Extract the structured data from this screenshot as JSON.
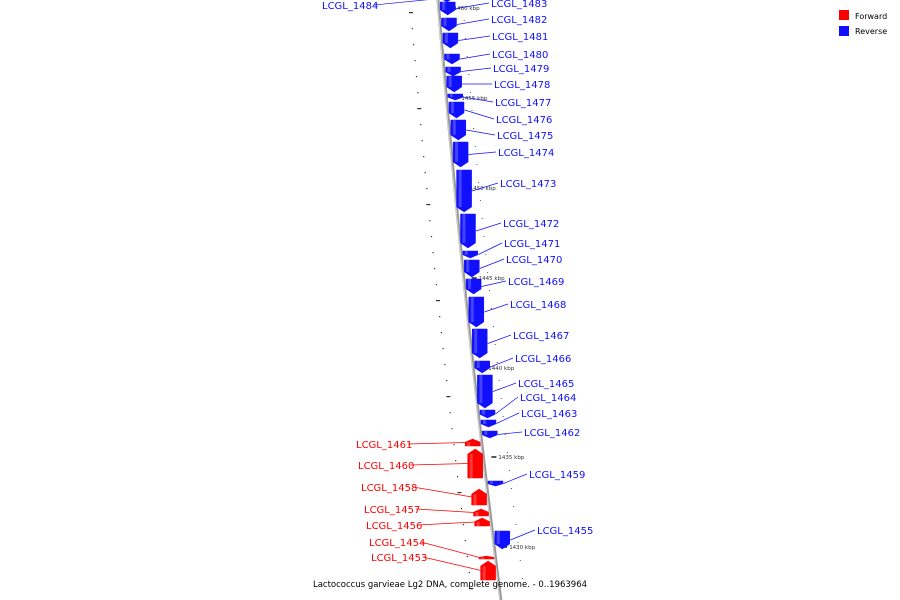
{
  "caption": "Lactococcus garvieae Lg2 DNA, complete genome. - 0..1963964",
  "colors": {
    "forward": "#ff0000",
    "reverse": "#1010ff",
    "backbone": "#999999"
  },
  "legend": [
    {
      "label": "Forward",
      "color": "#ff0000"
    },
    {
      "label": "Reverse",
      "color": "#1010ff"
    }
  ],
  "ticks": [
    "1460 kbp",
    "1455 kbp",
    "1450 kbp",
    "1445 kbp",
    "1440 kbp",
    "1435 kbp",
    "1430 kbp"
  ],
  "genes": [
    {
      "name": "LCGL_1484",
      "strand": "reverse"
    },
    {
      "name": "LCGL_1483",
      "strand": "reverse"
    },
    {
      "name": "LCGL_1482",
      "strand": "reverse"
    },
    {
      "name": "LCGL_1481",
      "strand": "reverse"
    },
    {
      "name": "LCGL_1480",
      "strand": "reverse"
    },
    {
      "name": "LCGL_1479",
      "strand": "reverse"
    },
    {
      "name": "LCGL_1478",
      "strand": "reverse"
    },
    {
      "name": "LCGL_1477",
      "strand": "reverse"
    },
    {
      "name": "LCGL_1476",
      "strand": "reverse"
    },
    {
      "name": "LCGL_1475",
      "strand": "reverse"
    },
    {
      "name": "LCGL_1474",
      "strand": "reverse"
    },
    {
      "name": "LCGL_1473",
      "strand": "reverse"
    },
    {
      "name": "LCGL_1472",
      "strand": "reverse"
    },
    {
      "name": "LCGL_1471",
      "strand": "reverse"
    },
    {
      "name": "LCGL_1470",
      "strand": "reverse"
    },
    {
      "name": "LCGL_1469",
      "strand": "reverse"
    },
    {
      "name": "LCGL_1468",
      "strand": "reverse"
    },
    {
      "name": "LCGL_1467",
      "strand": "reverse"
    },
    {
      "name": "LCGL_1466",
      "strand": "reverse"
    },
    {
      "name": "LCGL_1465",
      "strand": "reverse"
    },
    {
      "name": "LCGL_1464",
      "strand": "reverse"
    },
    {
      "name": "LCGL_1463",
      "strand": "reverse"
    },
    {
      "name": "LCGL_1462",
      "strand": "reverse"
    },
    {
      "name": "LCGL_1461",
      "strand": "forward"
    },
    {
      "name": "LCGL_1460",
      "strand": "forward"
    },
    {
      "name": "LCGL_1459",
      "strand": "reverse"
    },
    {
      "name": "LCGL_1458",
      "strand": "forward"
    },
    {
      "name": "LCGL_1457",
      "strand": "forward"
    },
    {
      "name": "LCGL_1456",
      "strand": "forward"
    },
    {
      "name": "LCGL_1455",
      "strand": "reverse"
    },
    {
      "name": "LCGL_1454",
      "strand": "forward"
    },
    {
      "name": "LCGL_1453",
      "strand": "forward"
    }
  ]
}
